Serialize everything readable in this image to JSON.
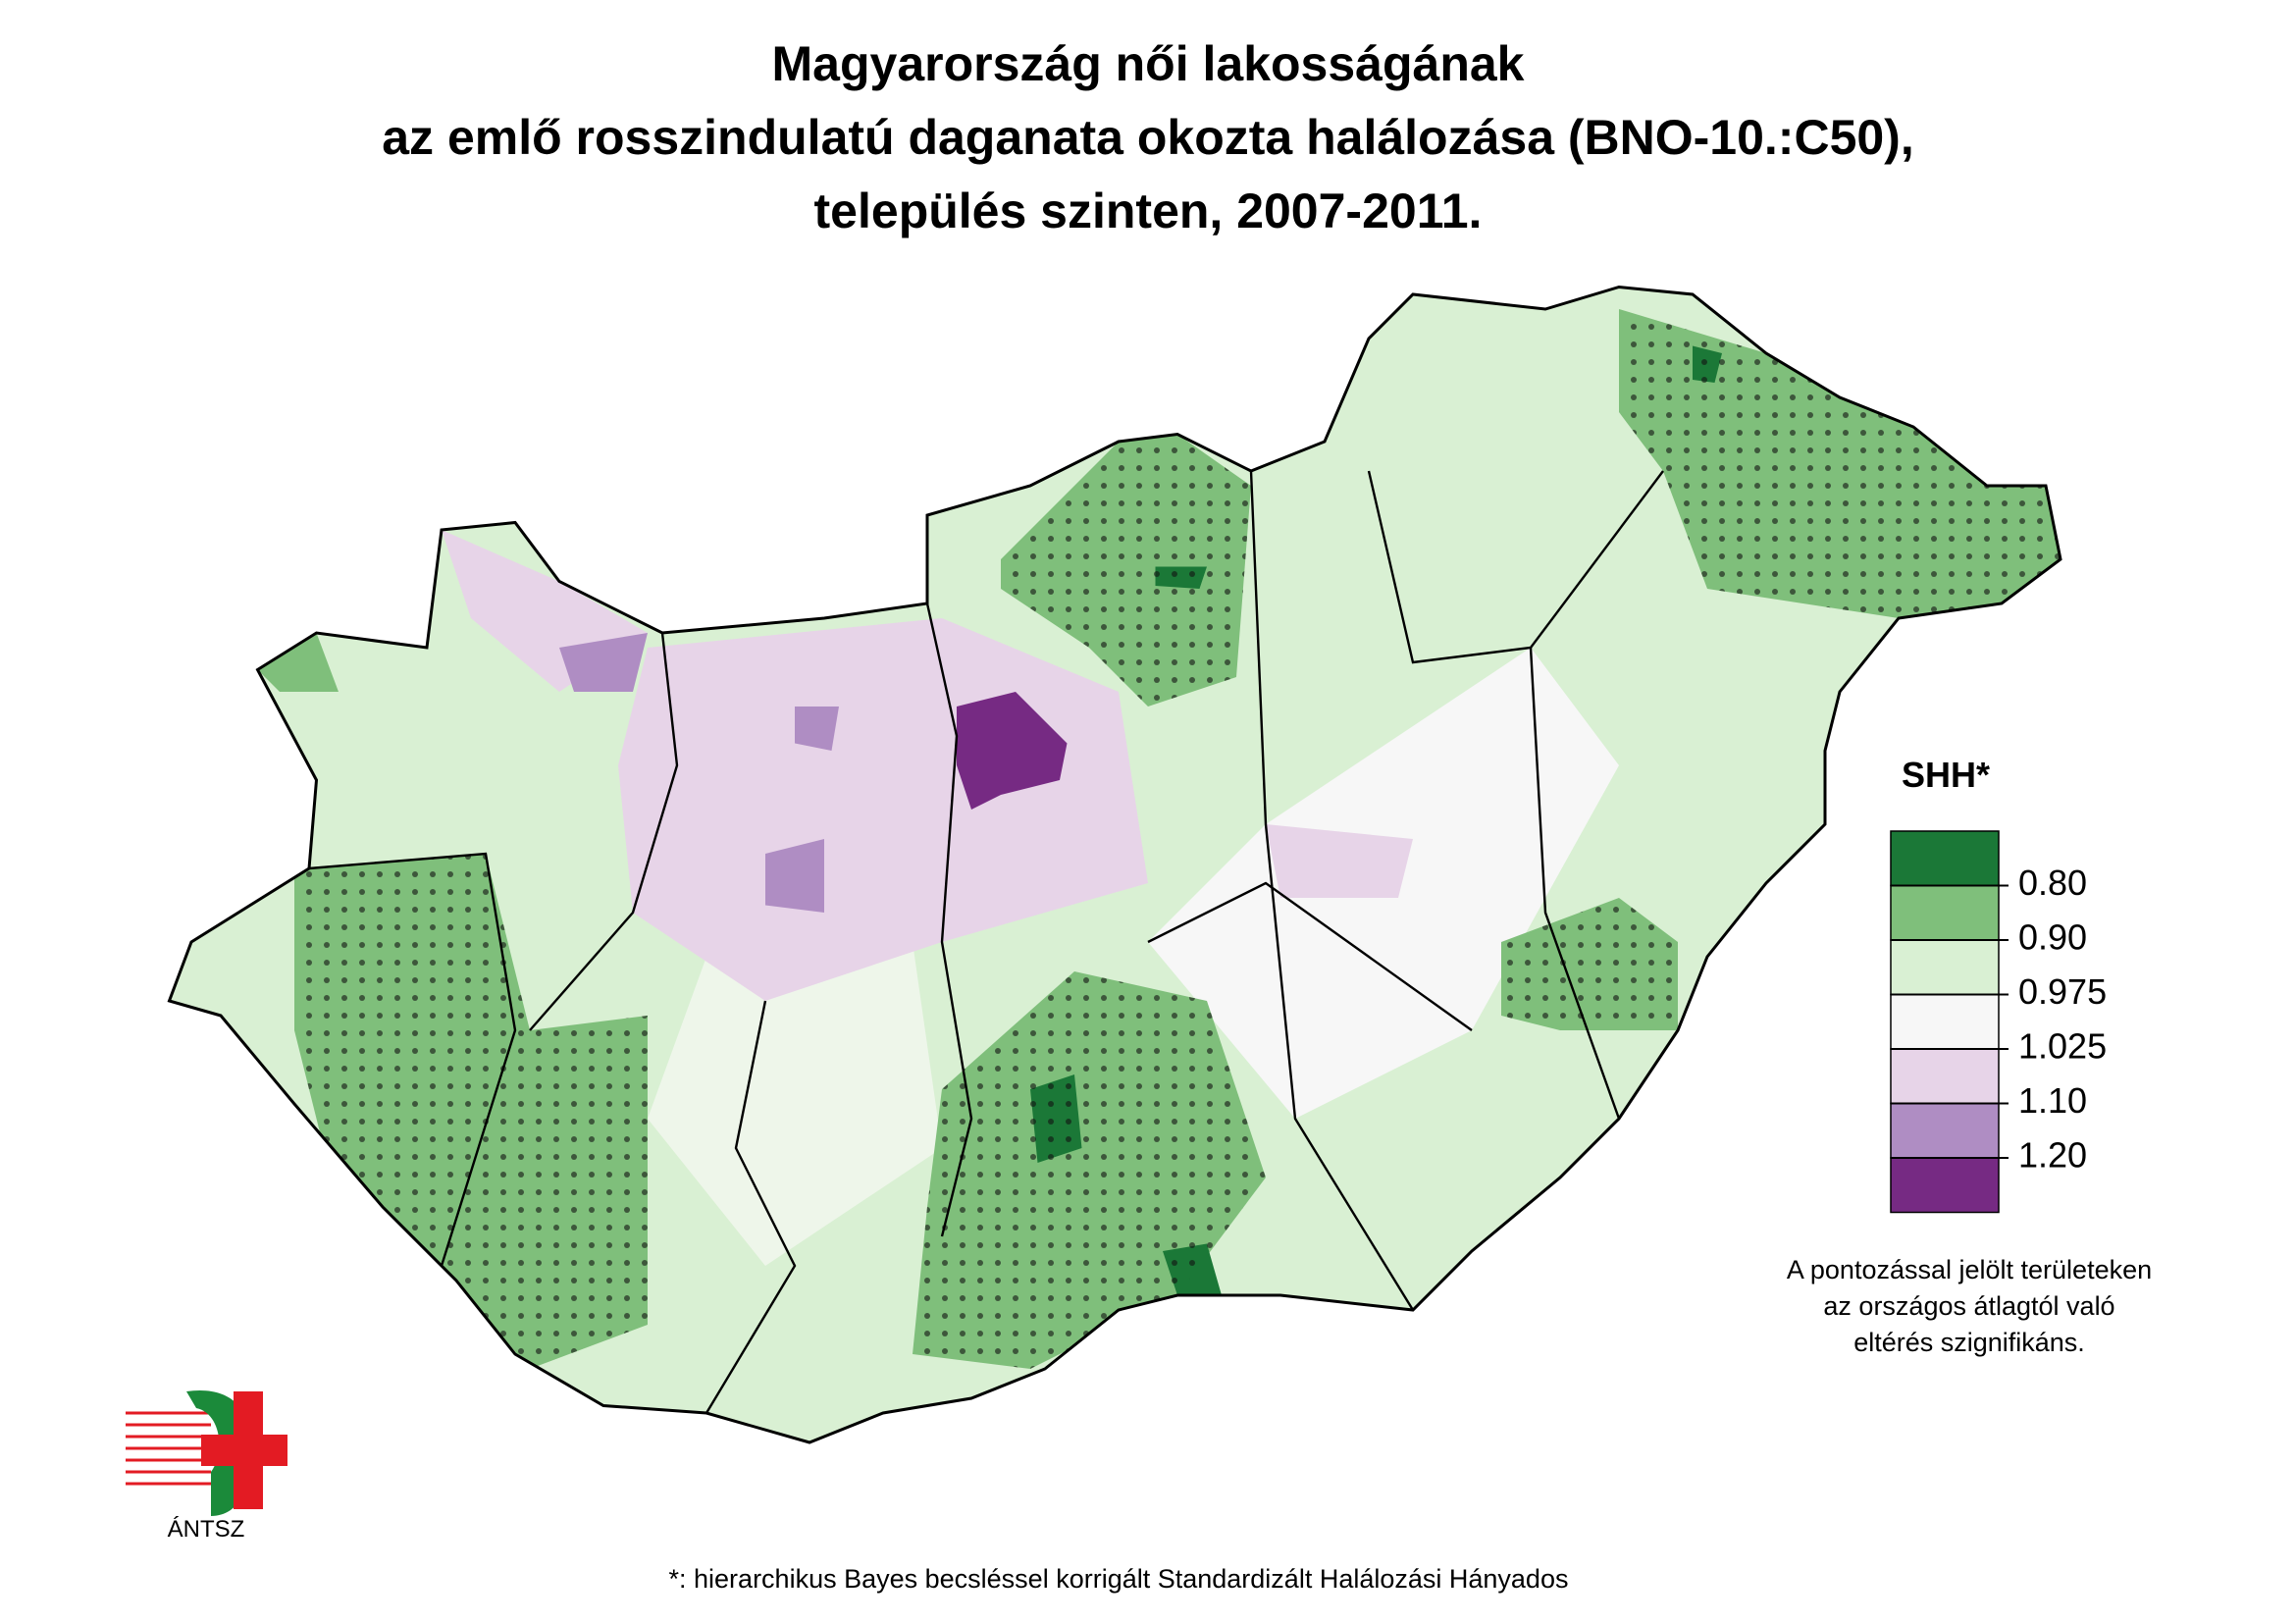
{
  "header": {
    "title_lines": [
      "Magyarország női lakosságának",
      "az emlő rosszindulatú daganata okozta halálozása (BNO-10.:C50),",
      "település szinten, 2007-2011."
    ]
  },
  "legend": {
    "title": "SHH*",
    "colors": [
      "#1b7837",
      "#7fbf7b",
      "#d9f0d3",
      "#f7f7f7",
      "#e7d4e8",
      "#af8dc3",
      "#762a83"
    ],
    "breaks": [
      "0.80",
      "0.90",
      "0.975",
      "1.025",
      "1.10",
      "1.20"
    ]
  },
  "note_lines": [
    "A pontozással jelölt területeken",
    "az országos átlagtól való",
    "eltérés szignifikáns."
  ],
  "footnote": "*: hierarchikus Bayes becsléssel korrigált Standardizált Halálozási Hányados",
  "logo": {
    "text": "ÁNTSZ"
  }
}
